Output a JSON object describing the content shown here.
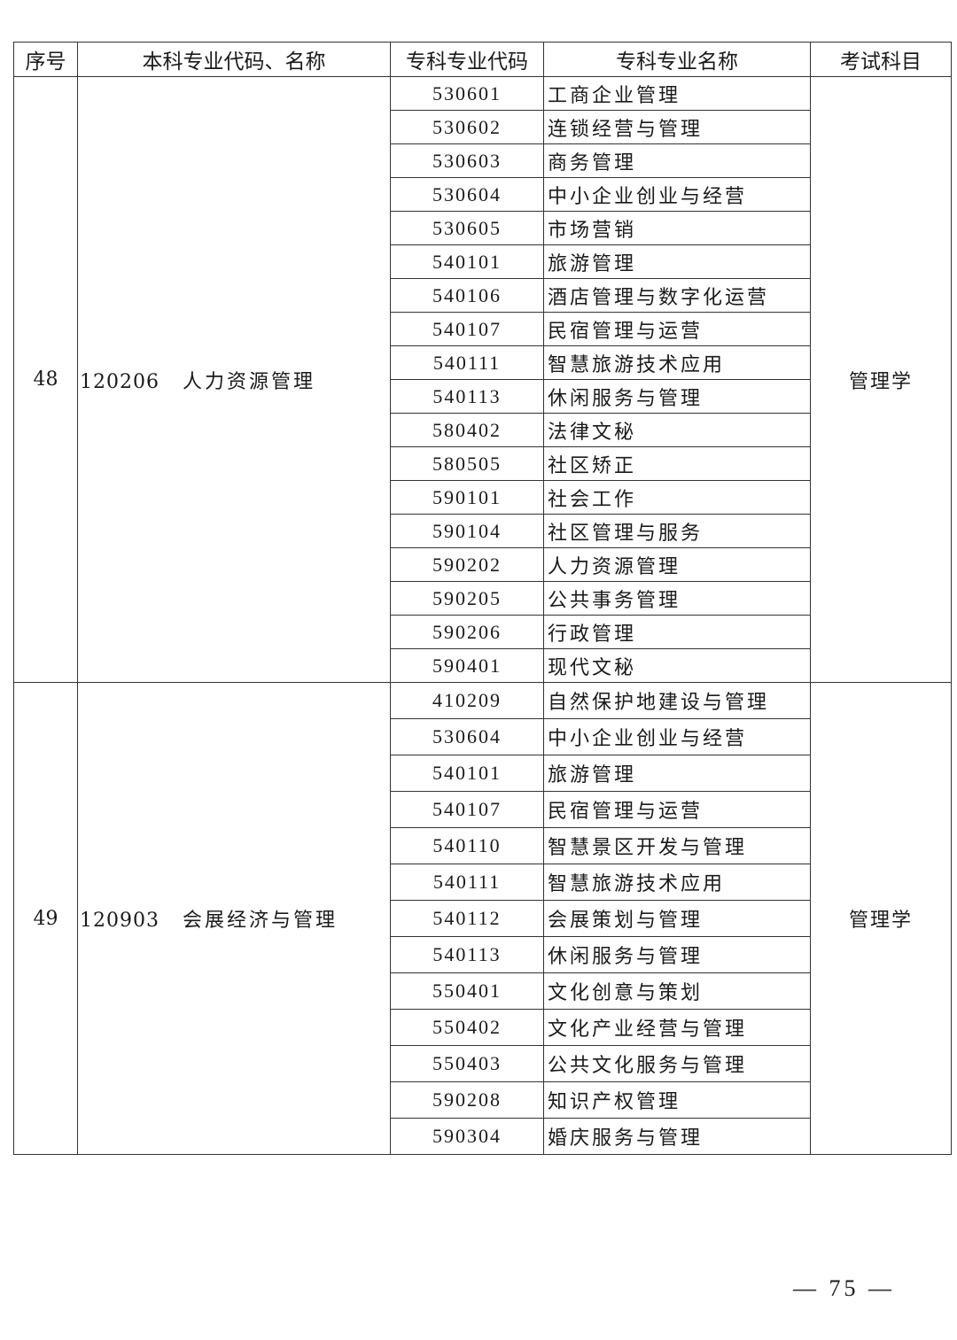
{
  "table": {
    "headers": [
      "序号",
      "本科专业代码、名称",
      "专科专业代码",
      "专科专业名称",
      "考试科目"
    ],
    "groups": [
      {
        "index": "48",
        "undergrad_code": "120206",
        "undergrad_name": "人力资源管理",
        "exam_subject": "管理学",
        "rows": [
          {
            "code": "530601",
            "name": "工商企业管理"
          },
          {
            "code": "530602",
            "name": "连锁经营与管理"
          },
          {
            "code": "530603",
            "name": "商务管理"
          },
          {
            "code": "530604",
            "name": "中小企业创业与经营"
          },
          {
            "code": "530605",
            "name": "市场营销"
          },
          {
            "code": "540101",
            "name": "旅游管理"
          },
          {
            "code": "540106",
            "name": "酒店管理与数字化运营"
          },
          {
            "code": "540107",
            "name": "民宿管理与运营"
          },
          {
            "code": "540111",
            "name": "智慧旅游技术应用"
          },
          {
            "code": "540113",
            "name": "休闲服务与管理"
          },
          {
            "code": "580402",
            "name": "法律文秘"
          },
          {
            "code": "580505",
            "name": "社区矫正"
          },
          {
            "code": "590101",
            "name": "社会工作"
          },
          {
            "code": "590104",
            "name": "社区管理与服务"
          },
          {
            "code": "590202",
            "name": "人力资源管理"
          },
          {
            "code": "590205",
            "name": "公共事务管理"
          },
          {
            "code": "590206",
            "name": "行政管理"
          },
          {
            "code": "590401",
            "name": "现代文秘"
          }
        ]
      },
      {
        "index": "49",
        "undergrad_code": "120903",
        "undergrad_name": "会展经济与管理",
        "exam_subject": "管理学",
        "rows": [
          {
            "code": "410209",
            "name": "自然保护地建设与管理"
          },
          {
            "code": "530604",
            "name": "中小企业创业与经营"
          },
          {
            "code": "540101",
            "name": "旅游管理"
          },
          {
            "code": "540107",
            "name": "民宿管理与运营"
          },
          {
            "code": "540110",
            "name": "智慧景区开发与管理"
          },
          {
            "code": "540111",
            "name": "智慧旅游技术应用"
          },
          {
            "code": "540112",
            "name": "会展策划与管理"
          },
          {
            "code": "540113",
            "name": "休闲服务与管理"
          },
          {
            "code": "550401",
            "name": "文化创意与策划"
          },
          {
            "code": "550402",
            "name": "文化产业经营与管理"
          },
          {
            "code": "550403",
            "name": "公共文化服务与管理"
          },
          {
            "code": "590208",
            "name": "知识产权管理"
          },
          {
            "code": "590304",
            "name": "婚庆服务与管理"
          }
        ]
      }
    ]
  },
  "page_number": "— 75 —"
}
